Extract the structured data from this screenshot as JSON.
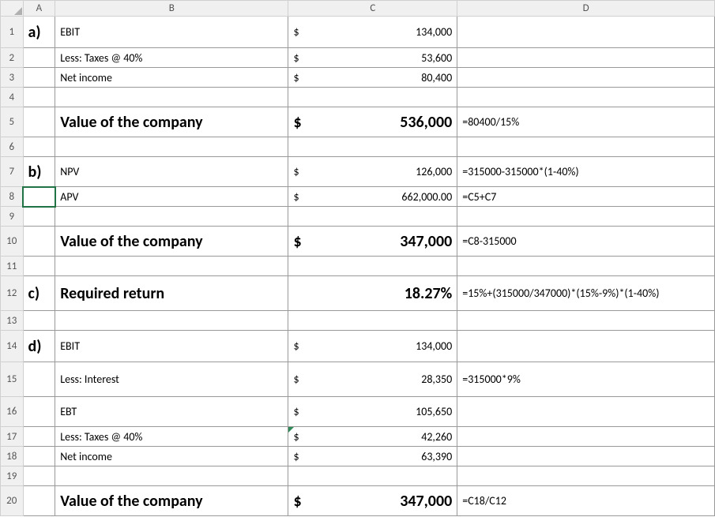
{
  "headers": {
    "A": "A",
    "B": "B",
    "C": "C",
    "D": "D"
  },
  "rows": {
    "1": {
      "A": "a)",
      "B": "EBIT",
      "C_sym": "$",
      "C_val": "134,000",
      "D": ""
    },
    "2": {
      "A": "",
      "B": "Less: Taxes @ 40%",
      "C_sym": "$",
      "C_val": "53,600",
      "D": ""
    },
    "3": {
      "A": "",
      "B": "Net income",
      "C_sym": "$",
      "C_val": "80,400",
      "D": ""
    },
    "4": {
      "A": "",
      "B": "",
      "C_sym": "",
      "C_val": "",
      "D": ""
    },
    "5": {
      "A": "",
      "B": "Value of the company",
      "C_sym": "$",
      "C_val": "536,000",
      "D": "=80400/15%"
    },
    "6": {
      "A": "",
      "B": "",
      "C_sym": "",
      "C_val": "",
      "D": ""
    },
    "7": {
      "A": "b)",
      "B": "NPV",
      "C_sym": "$",
      "C_val": "126,000",
      "D": "=315000-315000*(1-40%)"
    },
    "8": {
      "A": "",
      "B": "APV",
      "C_sym": "$",
      "C_val": "662,000.00",
      "D": "=C5+C7"
    },
    "9": {
      "A": "",
      "B": "",
      "C_sym": "",
      "C_val": "",
      "D": ""
    },
    "10": {
      "A": "",
      "B": "Value of the company",
      "C_sym": "$",
      "C_val": "347,000",
      "D": "=C8-315000"
    },
    "11": {
      "A": "",
      "B": "",
      "C_sym": "",
      "C_val": "",
      "D": ""
    },
    "12": {
      "A": "c)",
      "B": "Required return",
      "C_sym": "",
      "C_val": "18.27%",
      "D": "=15%+(315000/347000)*(15%-9%)*(1-40%)"
    },
    "13": {
      "A": "",
      "B": "",
      "C_sym": "",
      "C_val": "",
      "D": ""
    },
    "14": {
      "A": "d)",
      "B": "EBIT",
      "C_sym": "$",
      "C_val": "134,000",
      "D": ""
    },
    "15": {
      "A": "",
      "B": "Less: Interest",
      "C_sym": "$",
      "C_val": "28,350",
      "D": "=315000*9%"
    },
    "16": {
      "A": "",
      "B": "EBT",
      "C_sym": "$",
      "C_val": "105,650",
      "D": ""
    },
    "17": {
      "A": "",
      "B": "Less: Taxes @ 40%",
      "C_sym": "$",
      "C_val": "42,260",
      "D": ""
    },
    "18": {
      "A": "",
      "B": "Net income",
      "C_sym": "$",
      "C_val": "63,390",
      "D": ""
    },
    "19": {
      "A": "",
      "B": "",
      "C_sym": "",
      "C_val": "",
      "D": ""
    },
    "20": {
      "A": "",
      "B": "Value of the company",
      "C_sym": "$",
      "C_val": "347,000",
      "D": "=C18/C12"
    }
  },
  "style": {
    "bold_rows_BC": [
      "5",
      "10",
      "12",
      "20"
    ],
    "bold_rows_A": [
      "1",
      "7",
      "12",
      "14"
    ],
    "selected_cell": "A8",
    "err_mark_cell": "C17",
    "row_heights": {
      "1": 40,
      "5": 38,
      "7": 38,
      "10": 38,
      "12": 44,
      "14": 40,
      "15": 44,
      "16": 38,
      "20": 38
    }
  }
}
